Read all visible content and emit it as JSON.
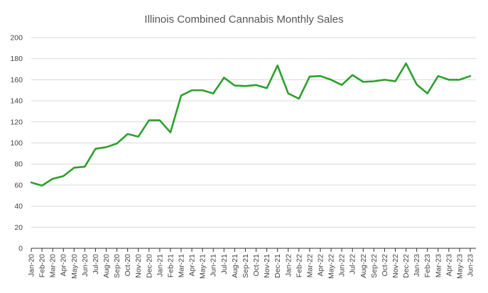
{
  "chart_data": {
    "type": "line",
    "title": "Illinois Combined Cannabis Monthly Sales",
    "xlabel": "",
    "ylabel": "",
    "ylim": [
      0,
      200
    ],
    "yticks": [
      0,
      20,
      40,
      60,
      80,
      100,
      120,
      140,
      160,
      180,
      200
    ],
    "grid": true,
    "legend": "none",
    "line_color": "#2ca02c",
    "categories": [
      "Jan-20",
      "Feb-20",
      "Mar-20",
      "Apr-20",
      "May-20",
      "Jun-20",
      "Jul-20",
      "Aug-20",
      "Sep-20",
      "Oct-20",
      "Nov-20",
      "Dec-20",
      "Jan-21",
      "Feb-21",
      "Mar-21",
      "Apr-21",
      "May-21",
      "Jun-21",
      "Jul-21",
      "Aug-21",
      "Sep-21",
      "Oct-21",
      "Nov-21",
      "Dec-21",
      "Jan-22",
      "Feb-22",
      "Mar-22",
      "Apr-22",
      "May-22",
      "Jun-22",
      "Jul-22",
      "Aug-22",
      "Sep-22",
      "Oct-22",
      "Nov-22",
      "Dec-22",
      "Jan-23",
      "Feb-23",
      "Mar-23",
      "Apr-23",
      "May-23",
      "Jun-23"
    ],
    "series": [
      {
        "values": [
          62.5,
          59.5,
          66,
          68.5,
          76.5,
          77.5,
          94.5,
          96,
          99.5,
          108.5,
          106,
          121.5,
          121.5,
          110,
          145,
          150,
          150,
          147,
          162,
          154.5,
          154,
          155,
          152,
          173.5,
          147,
          142,
          163,
          163.5,
          160,
          155,
          164.5,
          158,
          158.5,
          160,
          158.5,
          175.5,
          155.5,
          147,
          163.5,
          160,
          160,
          163.5
        ]
      }
    ]
  }
}
